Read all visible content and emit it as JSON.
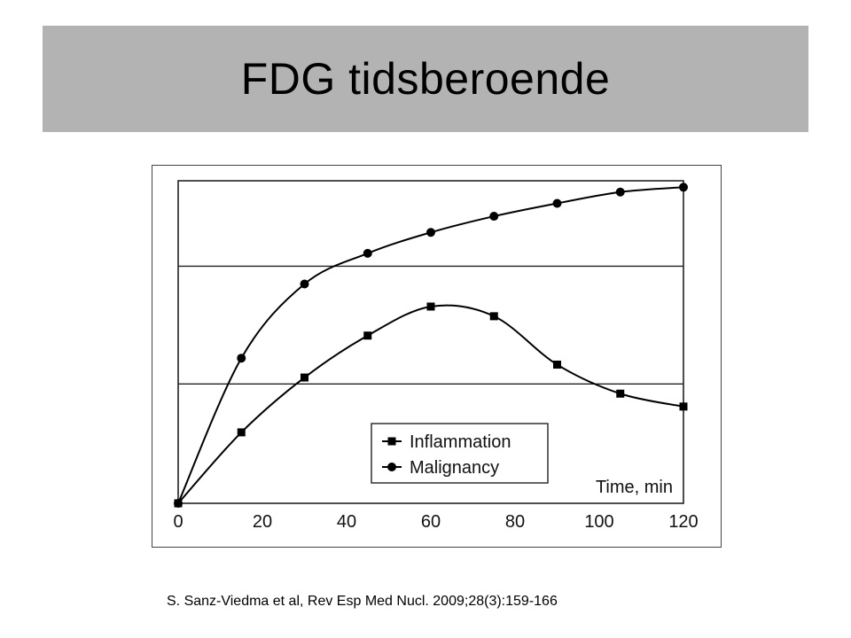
{
  "slide": {
    "title": "FDG tidsberoende",
    "caption": "S. Sanz-Viedma et al, Rev Esp Med Nucl. 2009;28(3):159-166"
  },
  "chart_data": {
    "type": "line",
    "title": "",
    "xlabel": "Time, min",
    "ylabel": "",
    "x_ticks": [
      "0",
      "20",
      "40",
      "60",
      "80",
      "100",
      "120"
    ],
    "xlim": [
      0,
      120
    ],
    "ylim": [
      0,
      100
    ],
    "grid": "horizontal",
    "legend_position": "bottom-right",
    "series": [
      {
        "name": "Inflammation",
        "marker": "square",
        "color": "#000000",
        "x": [
          0,
          15,
          30,
          45,
          60,
          75,
          90,
          105,
          120
        ],
        "y": [
          0,
          22,
          39,
          52,
          61,
          58,
          43,
          34,
          30
        ]
      },
      {
        "name": "Malignancy",
        "marker": "circle",
        "color": "#000000",
        "x": [
          0,
          15,
          30,
          45,
          60,
          75,
          90,
          105,
          120
        ],
        "y": [
          0,
          45,
          68,
          77.5,
          84,
          89,
          93,
          96.5,
          98
        ]
      }
    ]
  }
}
